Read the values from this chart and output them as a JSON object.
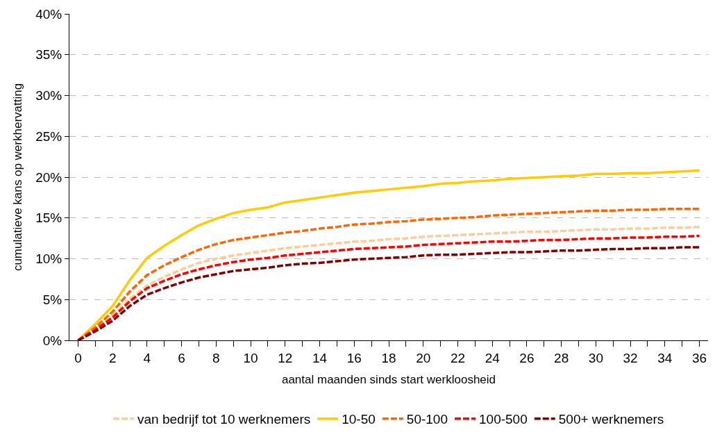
{
  "chart_data": {
    "type": "line",
    "xlabel": "aantal maanden sinds start werkloosheid",
    "ylabel": "cumulatieve kans op werkhervatting",
    "x": [
      0,
      1,
      2,
      3,
      4,
      5,
      6,
      7,
      8,
      9,
      10,
      11,
      12,
      13,
      14,
      15,
      16,
      17,
      18,
      19,
      20,
      21,
      22,
      23,
      24,
      25,
      26,
      27,
      28,
      29,
      30,
      31,
      32,
      33,
      34,
      35,
      36
    ],
    "series": [
      {
        "name": "van bedrijf tot 10 werknemers",
        "color": "#ffcc99",
        "line_style": "dashed",
        "values": [
          0,
          1.4,
          3.0,
          5.1,
          6.7,
          7.8,
          8.7,
          9.5,
          10.0,
          10.4,
          10.7,
          11.0,
          11.3,
          11.5,
          11.7,
          11.9,
          12.1,
          12.2,
          12.4,
          12.5,
          12.7,
          12.8,
          12.9,
          13.0,
          13.1,
          13.2,
          13.3,
          13.3,
          13.4,
          13.5,
          13.6,
          13.6,
          13.7,
          13.7,
          13.8,
          13.8,
          13.9
        ]
      },
      {
        "name": "10-50",
        "color": "#ffcc00",
        "line_style": "solid",
        "values": [
          0,
          2.0,
          4.2,
          7.4,
          10.1,
          11.6,
          12.9,
          14.1,
          14.9,
          15.6,
          16.0,
          16.3,
          16.9,
          17.2,
          17.5,
          17.8,
          18.1,
          18.3,
          18.5,
          18.7,
          18.9,
          19.2,
          19.3,
          19.5,
          19.6,
          19.8,
          19.9,
          20.0,
          20.1,
          20.2,
          20.4,
          20.4,
          20.5,
          20.5,
          20.6,
          20.7,
          20.8
        ]
      },
      {
        "name": "50-100",
        "color": "#ff6600",
        "line_style": "dashed",
        "values": [
          0,
          1.6,
          3.5,
          6.0,
          8.0,
          9.2,
          10.2,
          11.1,
          11.8,
          12.3,
          12.6,
          12.9,
          13.2,
          13.4,
          13.7,
          13.9,
          14.2,
          14.3,
          14.5,
          14.6,
          14.8,
          14.9,
          15.0,
          15.1,
          15.3,
          15.4,
          15.5,
          15.6,
          15.7,
          15.8,
          15.9,
          15.9,
          16.0,
          16.0,
          16.1,
          16.1,
          16.1
        ]
      },
      {
        "name": "100-500",
        "color": "#ff0000",
        "line_style": "dashed",
        "values": [
          0,
          1.3,
          2.8,
          4.8,
          6.4,
          7.3,
          8.1,
          8.7,
          9.2,
          9.6,
          9.9,
          10.1,
          10.4,
          10.6,
          10.8,
          11.0,
          11.2,
          11.3,
          11.4,
          11.5,
          11.7,
          11.8,
          11.9,
          12.0,
          12.1,
          12.1,
          12.2,
          12.3,
          12.3,
          12.4,
          12.5,
          12.5,
          12.6,
          12.6,
          12.7,
          12.7,
          12.8
        ]
      },
      {
        "name": "500+ werknemers",
        "color": "#800000",
        "line_style": "dashed",
        "values": [
          0,
          1.1,
          2.4,
          4.2,
          5.6,
          6.4,
          7.1,
          7.7,
          8.1,
          8.5,
          8.7,
          8.9,
          9.2,
          9.4,
          9.5,
          9.7,
          9.9,
          10.0,
          10.1,
          10.2,
          10.4,
          10.5,
          10.5,
          10.6,
          10.7,
          10.8,
          10.8,
          10.9,
          11.0,
          11.0,
          11.1,
          11.2,
          11.2,
          11.3,
          11.3,
          11.4,
          11.4
        ]
      }
    ],
    "xlim": [
      -0.5,
      36.5
    ],
    "xticks": [
      0,
      {
        "value": 1,
        "label": null
      },
      2,
      {
        "value": 3,
        "label": null
      },
      4,
      {
        "value": 5,
        "label": null
      },
      6,
      {
        "value": 7,
        "label": null
      },
      8,
      {
        "value": 9,
        "label": null
      },
      10,
      {
        "value": 11,
        "label": null
      },
      12,
      {
        "value": 13,
        "label": null
      },
      14,
      {
        "value": 15,
        "label": null
      },
      16,
      {
        "value": 17,
        "label": null
      },
      18,
      {
        "value": 19,
        "label": null
      },
      20,
      {
        "value": 21,
        "label": null
      },
      22,
      {
        "value": 23,
        "label": null
      },
      24,
      {
        "value": 25,
        "label": null
      },
      26,
      {
        "value": 27,
        "label": null
      },
      28,
      {
        "value": 29,
        "label": null
      },
      30,
      {
        "value": 31,
        "label": null
      },
      32,
      {
        "value": 33,
        "label": null
      },
      34,
      {
        "value": 35,
        "label": null
      },
      36
    ],
    "ylim": [
      0,
      40
    ],
    "yticks": [
      {
        "value": 0,
        "label": "0%"
      },
      {
        "value": 5,
        "label": "5%"
      },
      {
        "value": 10,
        "label": "10%"
      },
      {
        "value": 15,
        "label": "15%"
      },
      {
        "value": 20,
        "label": "20%"
      },
      {
        "value": 25,
        "label": "25%"
      },
      {
        "value": 30,
        "label": "30%"
      },
      {
        "value": 35,
        "label": "35%"
      },
      {
        "value": 40,
        "label": "40%"
      }
    ],
    "grid": "y",
    "legend": "bottom",
    "marker": "none"
  }
}
